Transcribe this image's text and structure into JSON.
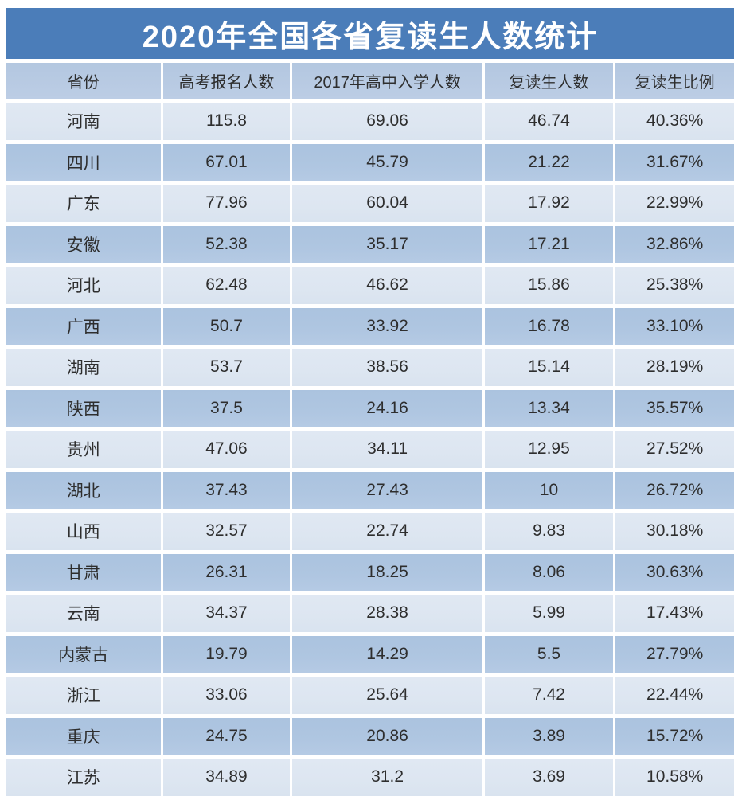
{
  "title": "2020年全国各省复读生人数统计",
  "chart_data": {
    "type": "table",
    "title": "2020年全国各省复读生人数统计",
    "columns": [
      "省份",
      "高考报名人数",
      "2017年高中入学人数",
      "复读生人数",
      "复读生比例"
    ],
    "rows": [
      [
        "河南",
        "115.8",
        "69.06",
        "46.74",
        "40.36%"
      ],
      [
        "四川",
        "67.01",
        "45.79",
        "21.22",
        "31.67%"
      ],
      [
        "广东",
        "77.96",
        "60.04",
        "17.92",
        "22.99%"
      ],
      [
        "安徽",
        "52.38",
        "35.17",
        "17.21",
        "32.86%"
      ],
      [
        "河北",
        "62.48",
        "46.62",
        "15.86",
        "25.38%"
      ],
      [
        "广西",
        "50.7",
        "33.92",
        "16.78",
        "33.10%"
      ],
      [
        "湖南",
        "53.7",
        "38.56",
        "15.14",
        "28.19%"
      ],
      [
        "陕西",
        "37.5",
        "24.16",
        "13.34",
        "35.57%"
      ],
      [
        "贵州",
        "47.06",
        "34.11",
        "12.95",
        "27.52%"
      ],
      [
        "湖北",
        "37.43",
        "27.43",
        "10",
        "26.72%"
      ],
      [
        "山西",
        "32.57",
        "22.74",
        "9.83",
        "30.18%"
      ],
      [
        "甘肃",
        "26.31",
        "18.25",
        "8.06",
        "30.63%"
      ],
      [
        "云南",
        "34.37",
        "28.38",
        "5.99",
        "17.43%"
      ],
      [
        "内蒙古",
        "19.79",
        "14.29",
        "5.5",
        "27.79%"
      ],
      [
        "浙江",
        "33.06",
        "25.64",
        "7.42",
        "22.44%"
      ],
      [
        "重庆",
        "24.75",
        "20.86",
        "3.89",
        "15.72%"
      ],
      [
        "江苏",
        "34.89",
        "31.2",
        "3.69",
        "10.58%"
      ]
    ],
    "layout_hints": {
      "row_striping": [
        "light",
        "dark"
      ],
      "text_align": "center",
      "header_position": "top"
    }
  },
  "colors": {
    "banner_blue": "#4b7db9",
    "header_row": "#b3c7e0",
    "row_light": "#dde6f1",
    "row_dark": "#afc6e1",
    "cell_text": "#2e2e2e",
    "title_text": "#ffffff",
    "gap_white": "#ffffff"
  }
}
